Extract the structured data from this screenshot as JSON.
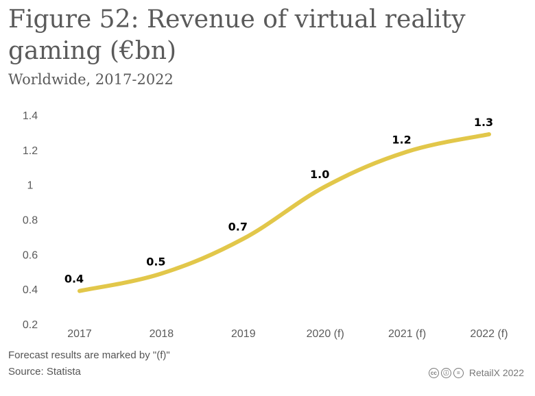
{
  "page": {
    "title": "Figure 52: Revenue of virtual reality gaming (€bn)",
    "subtitle": "Worldwide, 2017-2022",
    "note": "Forecast results are marked by \"(f)\"",
    "source": "Source: Statista",
    "credit": "RetailX 2022",
    "license_icons": [
      "cc-icon",
      "attribution-icon",
      "no-derivatives-icon"
    ]
  },
  "colors": {
    "line": "#e2c74a",
    "text": "#5a5a5a",
    "label": "#000000"
  },
  "chart_data": {
    "type": "line",
    "categories": [
      "2017",
      "2018",
      "2019",
      "2020 (f)",
      "2021 (f)",
      "2022 (f)"
    ],
    "values": [
      0.39,
      0.49,
      0.69,
      0.99,
      1.19,
      1.29
    ],
    "data_labels": [
      "0.4",
      "0.5",
      "0.7",
      "1.0",
      "1.2",
      "1.3"
    ],
    "yticks": [
      0.2,
      0.4,
      0.6,
      0.8,
      1,
      1.2,
      1.4
    ],
    "ytick_labels": [
      "0.2",
      "0.4",
      "0.6",
      "0.8",
      "1",
      "1.2",
      "1.4"
    ],
    "ylim": [
      0.2,
      1.4
    ],
    "grid": false,
    "legend": "none"
  }
}
